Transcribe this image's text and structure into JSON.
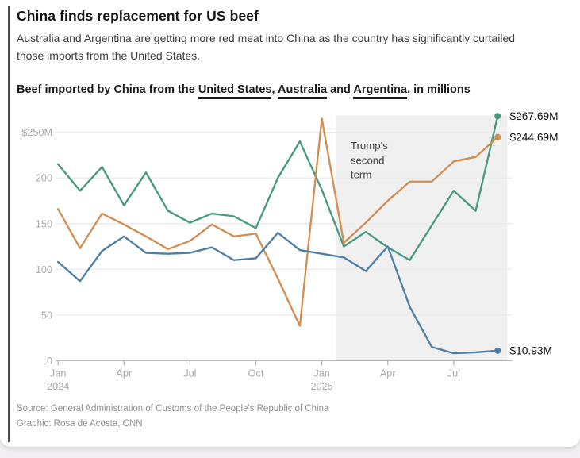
{
  "page": {
    "title": "China finds replacement for US beef",
    "subtitle": "Australia and Argentina are getting more red meat into China as the country has significantly curtailed those imports from the United States.",
    "heading": {
      "prefix": "Beef imported by China from the ",
      "us": "United States",
      "sep1": ", ",
      "australia": "Australia",
      "sep2": " and ",
      "argentina": "Argentina",
      "suffix": ", in millions"
    },
    "source_line": "Source: General Administration of Customs of the People's Republic of China",
    "credit_line": "Graphic: Rosa de Acosta, CNN"
  },
  "colors": {
    "us_line": "#4d7ea3",
    "australia_line": "#d18d52",
    "argentina_line": "#469a7d",
    "grid": "#e6e6e6",
    "axis": "#b3b3b3",
    "tick_label": "#a9a9a9",
    "region_fill": "#ececec",
    "annotation_text": "#3f3f3f",
    "end_label_text": "#0d0d0d"
  },
  "chart_data": {
    "type": "line",
    "unit": "USD millions per month",
    "x": [
      "Jan 2024",
      "Feb 2024",
      "Mar 2024",
      "Apr 2024",
      "May 2024",
      "Jun 2024",
      "Jul 2024",
      "Aug 2024",
      "Sep 2024",
      "Oct 2024",
      "Nov 2024",
      "Dec 2024",
      "Jan 2025",
      "Feb 2025",
      "Mar 2025",
      "Apr 2025",
      "May 2025",
      "Jun 2025",
      "Jul 2025",
      "Aug 2025",
      "Sep 2025"
    ],
    "series": [
      {
        "name": "Argentina",
        "color": "#469a7d",
        "end_label": "$267.69M",
        "values": [
          215,
          186,
          212,
          170,
          206,
          164,
          151,
          161,
          158,
          145,
          200,
          240,
          187,
          125,
          141,
          124,
          110,
          148,
          186,
          164,
          267.69
        ]
      },
      {
        "name": "Australia",
        "color": "#d18d52",
        "end_label": "$244.69M",
        "values": [
          166,
          123,
          161,
          149,
          136,
          122,
          131,
          149,
          136,
          139,
          90,
          38,
          265,
          129,
          151,
          175,
          196,
          196,
          218,
          223,
          244.69
        ]
      },
      {
        "name": "United States",
        "color": "#4d7ea3",
        "end_label": "$10.93M",
        "values": [
          108,
          87,
          120,
          136,
          118,
          117,
          118,
          124,
          110,
          112,
          140,
          121,
          117,
          113,
          98,
          125,
          59,
          15,
          8,
          9,
          10.93
        ]
      }
    ],
    "ylim": [
      0,
      270
    ],
    "yticks": [
      {
        "value": 250,
        "label": "$250M"
      },
      {
        "value": 200,
        "label": "200"
      },
      {
        "value": 150,
        "label": "150"
      },
      {
        "value": 100,
        "label": "100"
      },
      {
        "value": 50,
        "label": "50"
      },
      {
        "value": 0,
        "label": "0"
      }
    ],
    "xticks": [
      {
        "index": 0,
        "label": "Jan",
        "year": "2024"
      },
      {
        "index": 3,
        "label": "Apr"
      },
      {
        "index": 6,
        "label": "Jul"
      },
      {
        "index": 9,
        "label": "Oct"
      },
      {
        "index": 12,
        "label": "Jan",
        "year": "2025"
      },
      {
        "index": 15,
        "label": "Apr"
      },
      {
        "index": 18,
        "label": "Jul"
      }
    ],
    "grid": true,
    "legend": "country names underlined in heading",
    "annotation": {
      "lines": [
        "Trump's",
        "second",
        "term"
      ],
      "region_start_index": 12.65
    }
  }
}
